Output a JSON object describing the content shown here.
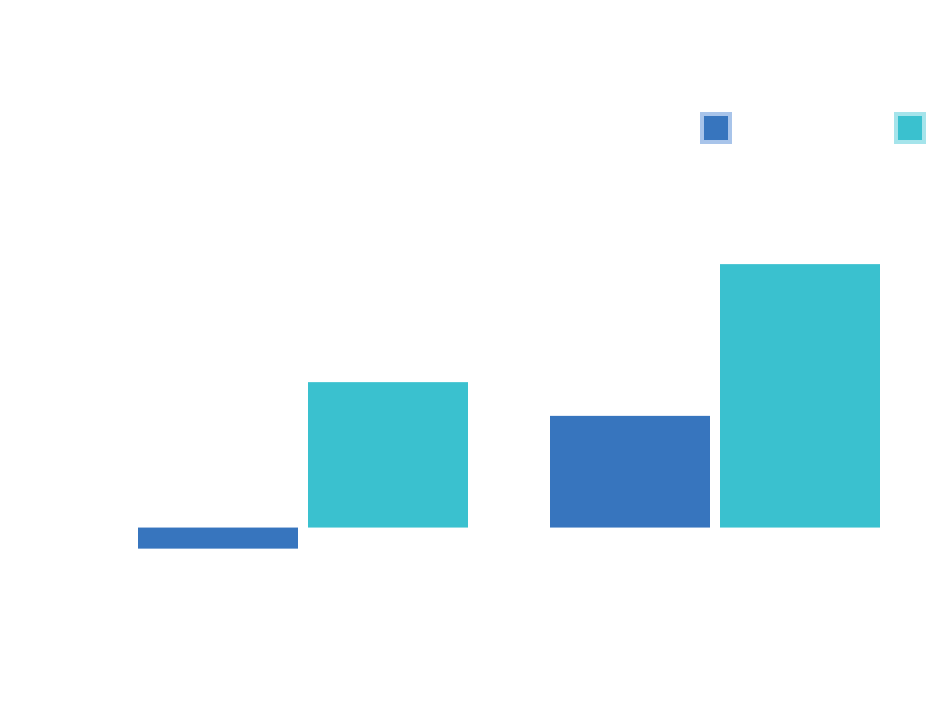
{
  "chart_data": {
    "type": "bar",
    "title": "",
    "xlabel": "",
    "ylabel": "",
    "categories": [
      "",
      ""
    ],
    "series": [
      {
        "values": [
          -1,
          5.3
        ],
        "color": "#3775BE",
        "legend_border": "#A8C4EA"
      },
      {
        "values": [
          6.9,
          12.5
        ],
        "color": "#3AC1CF",
        "legend_border": "#A5E4EB"
      }
    ],
    "ylim": [
      -6,
      21
    ],
    "grid": false,
    "legend_position": "top-right"
  }
}
